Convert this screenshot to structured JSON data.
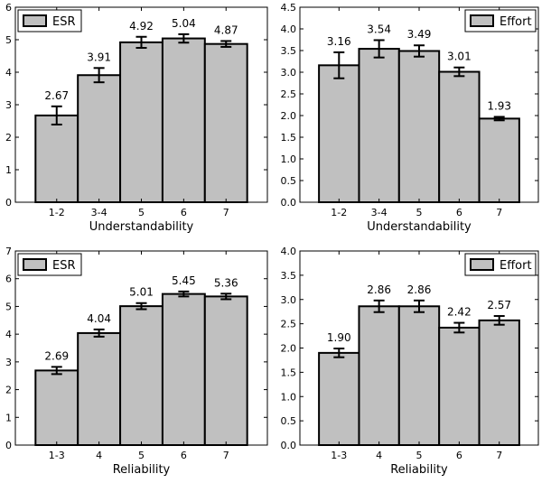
{
  "chart_data": [
    {
      "type": "bar",
      "categories": [
        "1-2",
        "3-4",
        "5",
        "6",
        "7"
      ],
      "values": [
        2.67,
        3.91,
        4.92,
        5.04,
        4.87
      ],
      "value_labels": [
        "2.67",
        "3.91",
        "4.92",
        "5.04",
        "4.87"
      ],
      "errors": [
        0.28,
        0.22,
        0.17,
        0.13,
        0.09
      ],
      "xlabel": "Understandability",
      "ylabel": "",
      "ylim": [
        0,
        6
      ],
      "yticks": [
        "0",
        "1",
        "2",
        "3",
        "4",
        "5",
        "6"
      ],
      "legend": "ESR",
      "legend_position": "top-left",
      "bar_color": "#c0c0c0",
      "edge_color": "#000000"
    },
    {
      "type": "bar",
      "categories": [
        "1-2",
        "3-4",
        "5",
        "6",
        "7"
      ],
      "values": [
        3.16,
        3.54,
        3.49,
        3.01,
        1.93
      ],
      "value_labels": [
        "3.16",
        "3.54",
        "3.49",
        "3.01",
        "1.93"
      ],
      "errors": [
        0.3,
        0.2,
        0.13,
        0.1,
        0.04
      ],
      "xlabel": "Understandability",
      "ylabel": "",
      "ylim": [
        0,
        4.5
      ],
      "yticks": [
        "0.0",
        "0.5",
        "1.0",
        "1.5",
        "2.0",
        "2.5",
        "3.0",
        "3.5",
        "4.0",
        "4.5"
      ],
      "legend": "Effort",
      "legend_position": "top-right",
      "bar_color": "#c0c0c0",
      "edge_color": "#000000"
    },
    {
      "type": "bar",
      "categories": [
        "1-3",
        "4",
        "5",
        "6",
        "7"
      ],
      "values": [
        2.69,
        4.04,
        5.01,
        5.45,
        5.36
      ],
      "value_labels": [
        "2.69",
        "4.04",
        "5.01",
        "5.45",
        "5.36"
      ],
      "errors": [
        0.13,
        0.13,
        0.11,
        0.09,
        0.1
      ],
      "xlabel": "Reliability",
      "ylabel": "",
      "ylim": [
        0,
        7
      ],
      "yticks": [
        "0",
        "1",
        "2",
        "3",
        "4",
        "5",
        "6",
        "7"
      ],
      "legend": "ESR",
      "legend_position": "top-left",
      "bar_color": "#c0c0c0",
      "edge_color": "#000000"
    },
    {
      "type": "bar",
      "categories": [
        "1-3",
        "4",
        "5",
        "6",
        "7"
      ],
      "values": [
        1.9,
        2.86,
        2.86,
        2.42,
        2.57
      ],
      "value_labels": [
        "1.90",
        "2.86",
        "2.86",
        "2.42",
        "2.57"
      ],
      "errors": [
        0.09,
        0.12,
        0.12,
        0.1,
        0.09
      ],
      "xlabel": "Reliability",
      "ylabel": "",
      "ylim": [
        0,
        4
      ],
      "yticks": [
        "0.0",
        "0.5",
        "1.0",
        "1.5",
        "2.0",
        "2.5",
        "3.0",
        "3.5",
        "4.0"
      ],
      "legend": "Effort",
      "legend_position": "top-right",
      "bar_color": "#c0c0c0",
      "edge_color": "#000000"
    }
  ]
}
